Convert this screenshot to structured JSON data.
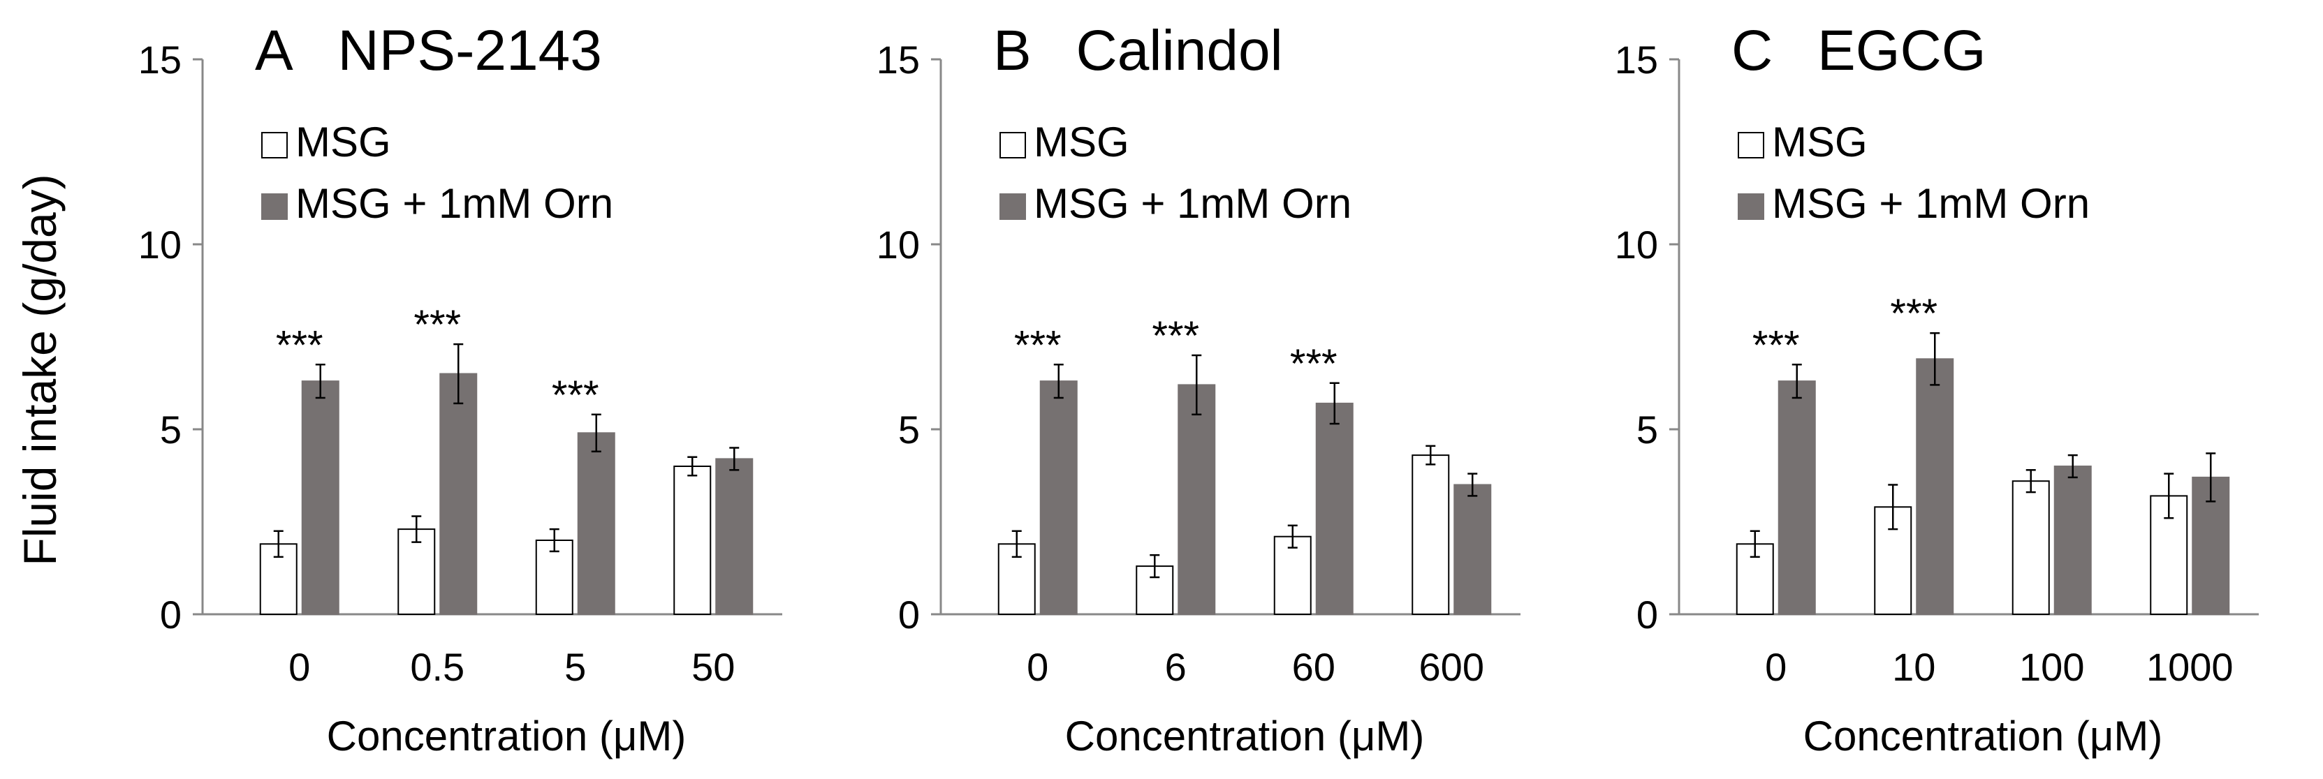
{
  "figure": {
    "ylabel": "Fluid intake (g/day)",
    "xlabel": "Concentration (μM)"
  },
  "colors": {
    "msg": "#ffffff",
    "orn": "#767171",
    "axis": "#888888",
    "edge": "#000000"
  },
  "chart_data": [
    {
      "type": "bar",
      "panel": "A",
      "title": "NPS-2143",
      "categories": [
        "0",
        "0.5",
        "5",
        "50"
      ],
      "xlabel": "Concentration (μM)",
      "ylabel": "Fluid intake (g/day)",
      "ylim": [
        0,
        15
      ],
      "yticks": [
        "0",
        "5",
        "10",
        "15"
      ],
      "series": [
        {
          "name": "MSG",
          "values": [
            1.9,
            2.3,
            2.0,
            4.0
          ],
          "errors": [
            0.35,
            0.35,
            0.3,
            0.25
          ]
        },
        {
          "name": "MSG + 1mM Orn",
          "values": [
            6.3,
            6.5,
            4.9,
            4.2
          ],
          "errors": [
            0.45,
            0.8,
            0.5,
            0.3
          ]
        }
      ],
      "annotations": [
        "***",
        "***",
        "***",
        ""
      ]
    },
    {
      "type": "bar",
      "panel": "B",
      "title": "Calindol",
      "categories": [
        "0",
        "6",
        "60",
        "600"
      ],
      "xlabel": "Concentration (μM)",
      "ylabel": "Fluid intake (g/day)",
      "ylim": [
        0,
        15
      ],
      "yticks": [
        "0",
        "5",
        "10",
        "15"
      ],
      "series": [
        {
          "name": "MSG",
          "values": [
            1.9,
            1.3,
            2.1,
            4.3
          ],
          "errors": [
            0.35,
            0.3,
            0.3,
            0.25
          ]
        },
        {
          "name": "MSG + 1mM Orn",
          "values": [
            6.3,
            6.2,
            5.7,
            3.5
          ],
          "errors": [
            0.45,
            0.8,
            0.55,
            0.3
          ]
        }
      ],
      "annotations": [
        "***",
        "***",
        "***",
        ""
      ]
    },
    {
      "type": "bar",
      "panel": "C",
      "title": "EGCG",
      "categories": [
        "0",
        "10",
        "100",
        "1000"
      ],
      "xlabel": "Concentration (μM)",
      "ylabel": "Fluid intake (g/day)",
      "ylim": [
        0,
        15
      ],
      "yticks": [
        "0",
        "5",
        "10",
        "15"
      ],
      "series": [
        {
          "name": "MSG",
          "values": [
            1.9,
            2.9,
            3.6,
            3.2
          ],
          "errors": [
            0.35,
            0.6,
            0.3,
            0.6
          ]
        },
        {
          "name": "MSG + 1mM Orn",
          "values": [
            6.3,
            6.9,
            4.0,
            3.7
          ],
          "errors": [
            0.45,
            0.7,
            0.3,
            0.65
          ]
        }
      ],
      "annotations": [
        "***",
        "***",
        "",
        ""
      ]
    }
  ]
}
